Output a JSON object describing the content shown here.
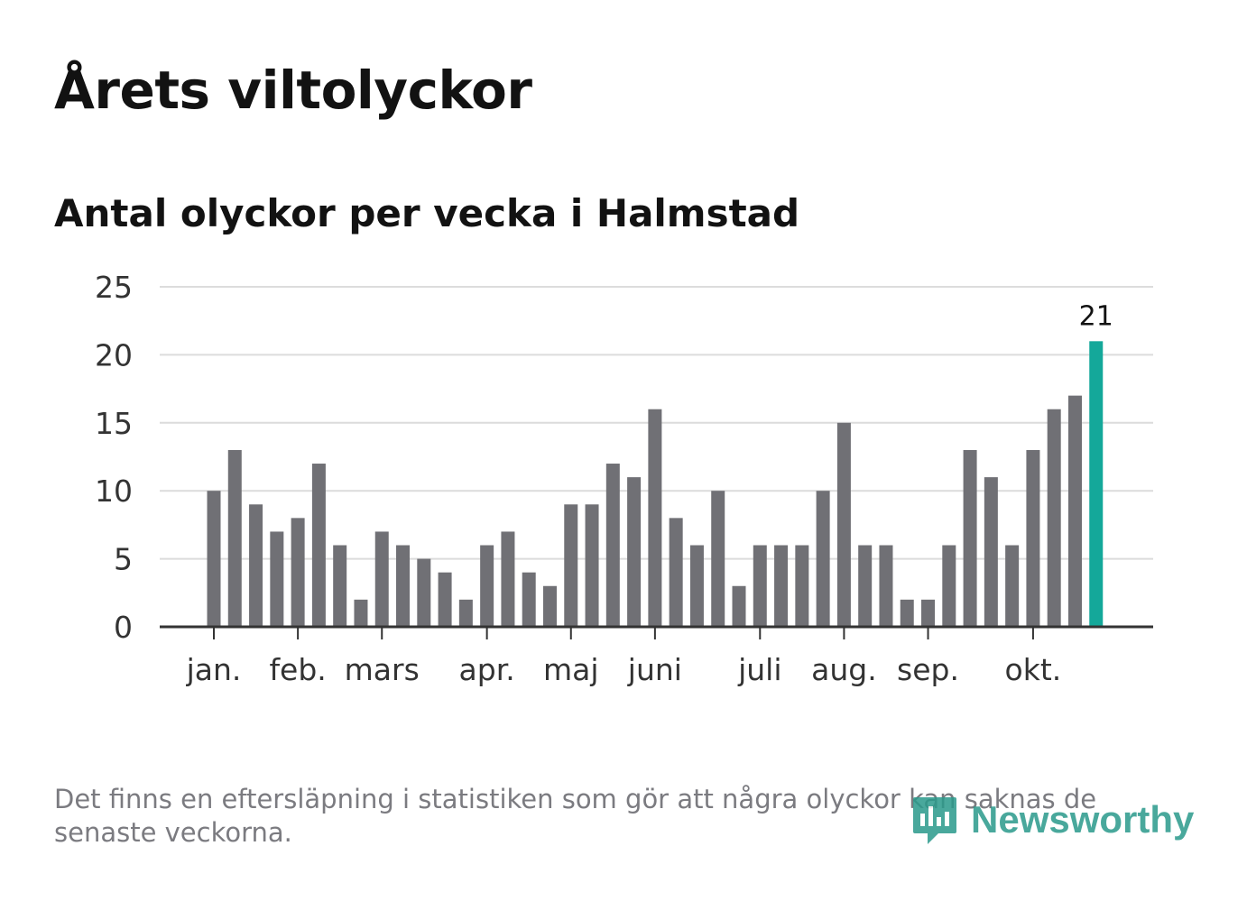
{
  "header": {
    "title": "Årets viltolyckor",
    "subtitle": "Antal olyckor per vecka i Halmstad"
  },
  "footer": {
    "note": "Det finns en eftersläpning i statistiken som gör att några olyckor kan saknas de senaste veckorna.",
    "brand": "Newsworthy"
  },
  "colors": {
    "bar": "#707075",
    "highlight": "#14a89a",
    "grid": "#dcdcdc",
    "axis": "#333333",
    "text": "#333333"
  },
  "chart_data": {
    "type": "bar",
    "title": "Antal olyckor per vecka i Halmstad",
    "xlabel": "",
    "ylabel": "",
    "ylim": [
      0,
      25
    ],
    "yticks": [
      0,
      5,
      10,
      15,
      20,
      25
    ],
    "grid": true,
    "x": [
      1,
      2,
      3,
      4,
      5,
      6,
      7,
      8,
      9,
      10,
      11,
      12,
      13,
      14,
      15,
      16,
      17,
      18,
      19,
      20,
      21,
      22,
      23,
      24,
      25,
      26,
      27,
      28,
      29,
      30,
      31,
      32,
      33,
      34,
      35,
      36,
      37,
      38,
      39,
      40,
      41,
      42,
      43
    ],
    "values": [
      10,
      13,
      9,
      7,
      8,
      12,
      6,
      2,
      7,
      6,
      5,
      4,
      2,
      6,
      7,
      4,
      3,
      9,
      9,
      12,
      11,
      16,
      8,
      6,
      10,
      3,
      6,
      6,
      6,
      10,
      15,
      6,
      6,
      2,
      2,
      6,
      13,
      11,
      6,
      13,
      16,
      17,
      21
    ],
    "highlight_index": 42,
    "highlight_label": "21",
    "month_ticks": [
      {
        "label": "jan.",
        "week": 1
      },
      {
        "label": "feb.",
        "week": 5
      },
      {
        "label": "mars",
        "week": 9
      },
      {
        "label": "apr.",
        "week": 14
      },
      {
        "label": "maj",
        "week": 18
      },
      {
        "label": "juni",
        "week": 22
      },
      {
        "label": "juli",
        "week": 27
      },
      {
        "label": "aug.",
        "week": 31
      },
      {
        "label": "sep.",
        "week": 35
      },
      {
        "label": "okt.",
        "week": 40
      }
    ]
  }
}
